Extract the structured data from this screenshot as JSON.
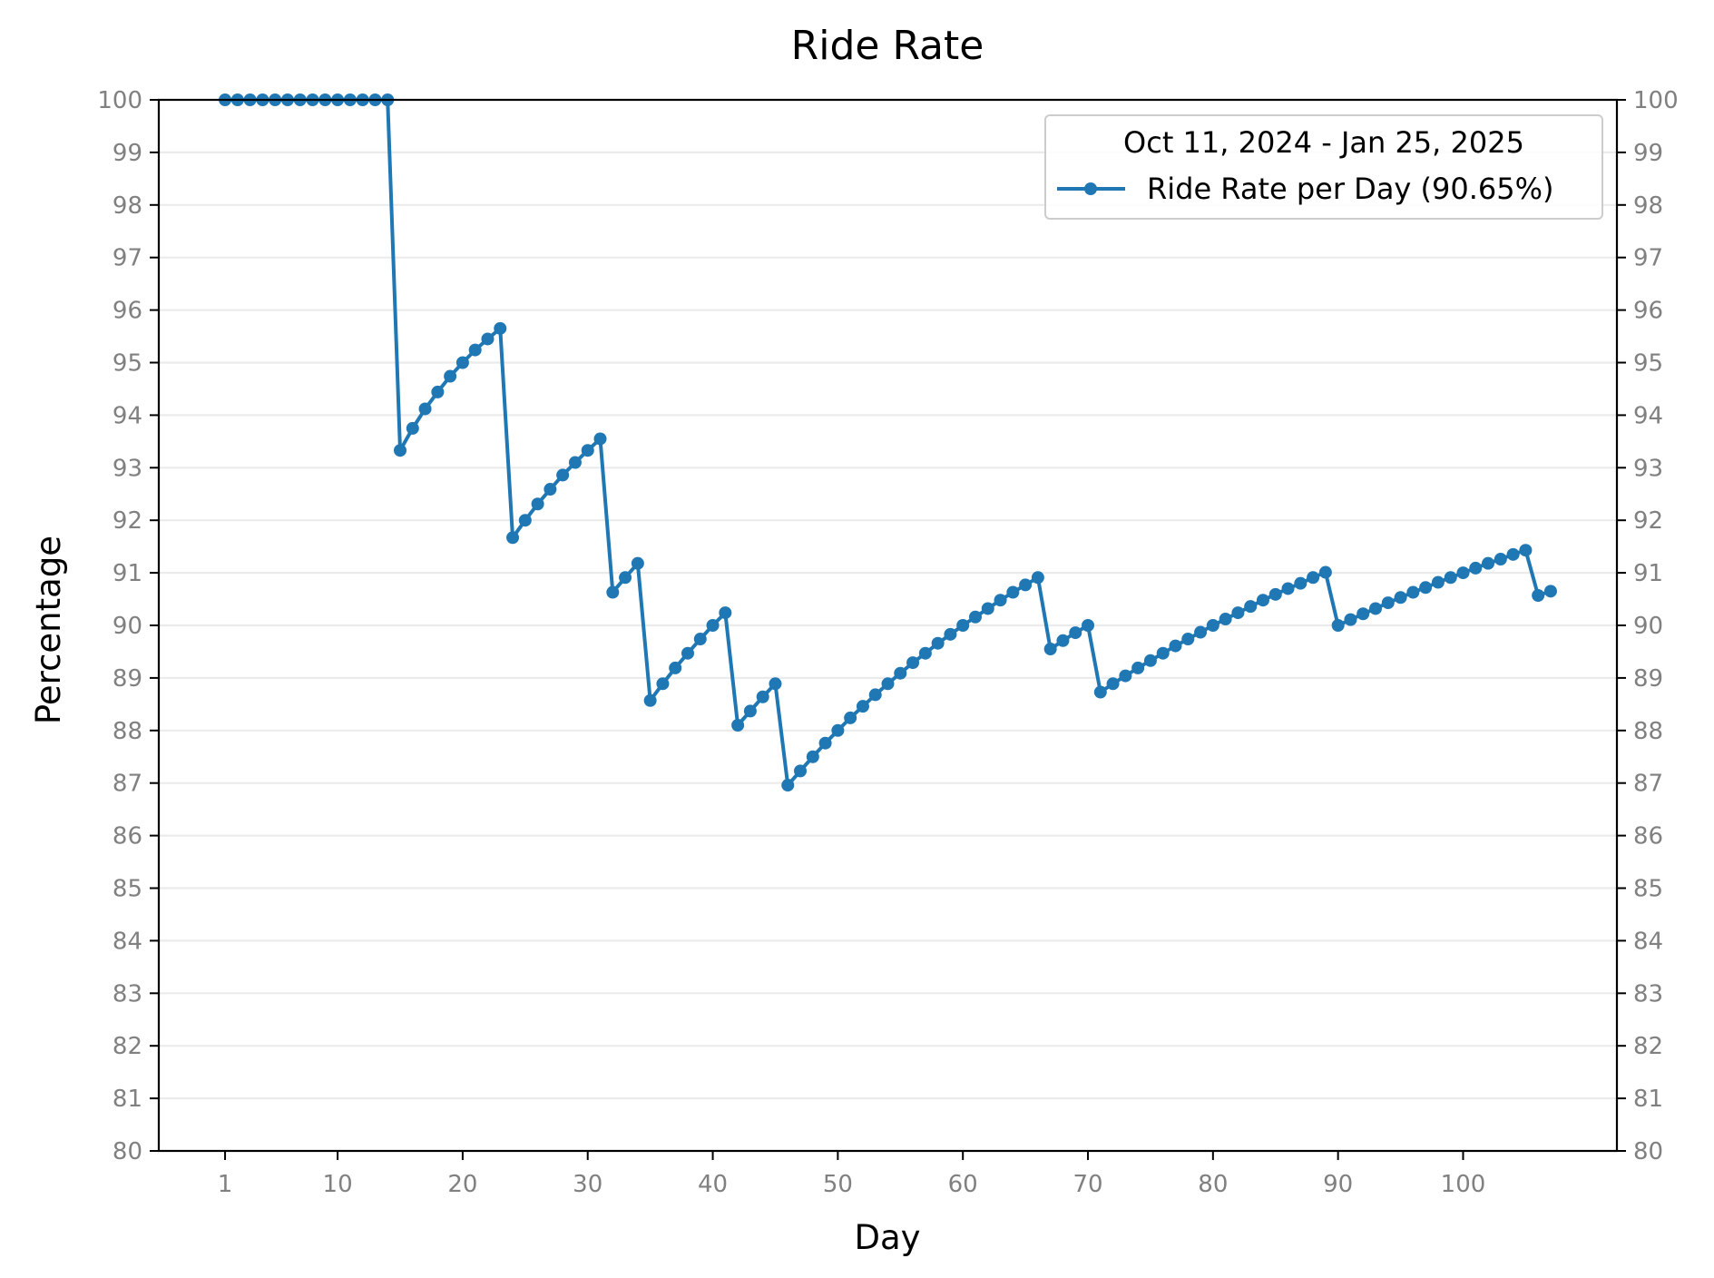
{
  "chart_data": {
    "type": "line",
    "title": "Ride Rate",
    "xlabel": "Day",
    "ylabel": "Percentage",
    "xlim": [
      -4.3,
      112.3
    ],
    "ylim": [
      80,
      100
    ],
    "x_ticks": [
      1,
      10,
      20,
      30,
      40,
      50,
      60,
      70,
      80,
      90,
      100
    ],
    "y_ticks": [
      80,
      81,
      82,
      83,
      84,
      85,
      86,
      87,
      88,
      89,
      90,
      91,
      92,
      93,
      94,
      95,
      96,
      97,
      98,
      99,
      100
    ],
    "grid": "horizontal",
    "right_axis_mirror": true,
    "legend": {
      "title": "Oct 11, 2024 - Jan 25, 2025",
      "placement": "top-right",
      "entries": [
        "Ride Rate per Day (90.65%)"
      ]
    },
    "series": [
      {
        "name": "Ride Rate per Day (90.65%)",
        "color": "#1f77b4",
        "x": [
          1,
          2,
          3,
          4,
          5,
          6,
          7,
          8,
          9,
          10,
          11,
          12,
          13,
          14,
          15,
          16,
          17,
          18,
          19,
          20,
          21,
          22,
          23,
          24,
          25,
          26,
          27,
          28,
          29,
          30,
          31,
          32,
          33,
          34,
          35,
          36,
          37,
          38,
          39,
          40,
          41,
          42,
          43,
          44,
          45,
          46,
          47,
          48,
          49,
          50,
          51,
          52,
          53,
          54,
          55,
          56,
          57,
          58,
          59,
          60,
          61,
          62,
          63,
          64,
          65,
          66,
          67,
          68,
          69,
          70,
          71,
          72,
          73,
          74,
          75,
          76,
          77,
          78,
          79,
          80,
          81,
          82,
          83,
          84,
          85,
          86,
          87,
          88,
          89,
          90,
          91,
          92,
          93,
          94,
          95,
          96,
          97,
          98,
          99,
          100,
          101,
          102,
          103,
          104,
          105,
          106,
          107
        ],
        "y": [
          100,
          100,
          100,
          100,
          100,
          100,
          100,
          100,
          100,
          100,
          100,
          100,
          100,
          100,
          93.33,
          93.75,
          94.12,
          94.44,
          94.74,
          95.0,
          95.24,
          95.45,
          95.65,
          91.67,
          92.0,
          92.31,
          92.59,
          92.86,
          93.1,
          93.33,
          93.55,
          90.63,
          90.91,
          91.18,
          88.57,
          88.89,
          89.19,
          89.47,
          89.74,
          90.0,
          90.24,
          88.1,
          88.37,
          88.64,
          88.89,
          86.96,
          87.23,
          87.5,
          87.76,
          88.0,
          88.24,
          88.46,
          88.68,
          88.89,
          89.09,
          89.29,
          89.47,
          89.66,
          89.83,
          90.0,
          90.16,
          90.32,
          90.48,
          90.63,
          90.77,
          90.91,
          89.55,
          89.71,
          89.86,
          90.0,
          88.73,
          88.89,
          89.04,
          89.19,
          89.33,
          89.47,
          89.61,
          89.74,
          89.87,
          90.0,
          90.12,
          90.24,
          90.36,
          90.48,
          90.59,
          90.7,
          90.8,
          90.91,
          91.01,
          90.0,
          90.11,
          90.22,
          90.32,
          90.43,
          90.53,
          90.63,
          90.72,
          90.82,
          90.91,
          91.0,
          91.09,
          91.18,
          91.26,
          91.35,
          91.43,
          90.57,
          90.65
        ]
      }
    ]
  }
}
